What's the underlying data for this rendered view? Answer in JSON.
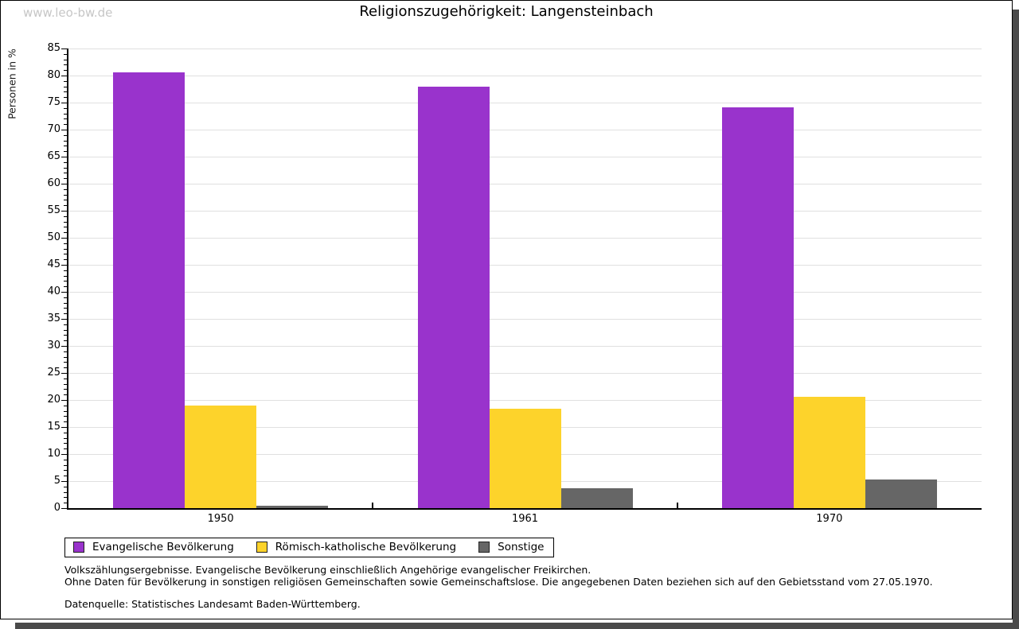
{
  "watermark": "www.leo-bw.de",
  "chart_data": {
    "type": "bar",
    "title": "Religionszugehörigkeit: Langensteinbach",
    "ylabel": "Personen in %",
    "xlabel": "",
    "categories": [
      "1950",
      "1961",
      "1970"
    ],
    "series": [
      {
        "name": "Evangelische Bevölkerung",
        "color": "#9933cc",
        "values": [
          80.6,
          77.9,
          74.1
        ]
      },
      {
        "name": "Römisch-katholische Bevölkerung",
        "color": "#fdd32b",
        "values": [
          19.0,
          18.4,
          20.6
        ]
      },
      {
        "name": "Sonstige",
        "color": "#666666",
        "values": [
          0.4,
          3.7,
          5.3
        ]
      }
    ],
    "ylim": [
      0,
      85
    ],
    "ytick_step": 5,
    "minor_tick_step": 1,
    "grid": true,
    "gridline_color": "#e0e0e0",
    "legend_position": "bottom"
  },
  "footer": {
    "line1": "Volkszählungsergebnisse. Evangelische Bevölkerung einschließlich Angehörige evangelischer Freikirchen.",
    "line2": "Ohne Daten für Bevölkerung in sonstigen religiösen Gemeinschaften sowie Gemeinschaftslose. Die angegebenen Daten beziehen sich auf den Gebietsstand vom 27.05.1970.",
    "source": "Datenquelle: Statistisches Landesamt Baden-Württemberg."
  }
}
